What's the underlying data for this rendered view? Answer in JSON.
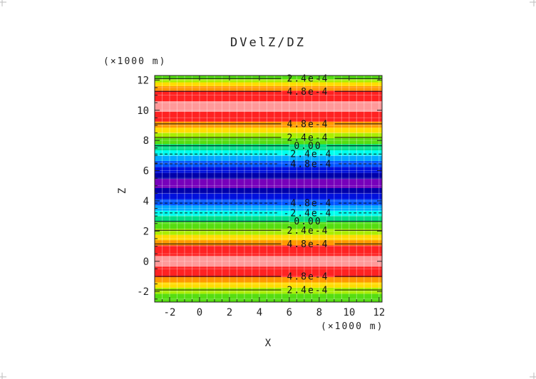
{
  "chart_data": {
    "type": "heatmap",
    "title": "DVelZ/DZ",
    "xlabel": "X",
    "ylabel": "Z",
    "x_unit": "(×1000 m)",
    "y_unit": "(×1000 m)",
    "xlim": [
      -3,
      12.2
    ],
    "ylim": [
      -2.7,
      12.3
    ],
    "x_ticks": [
      -2,
      0,
      2,
      4,
      6,
      8,
      10,
      12
    ],
    "x_tick_labels": [
      "-2",
      "0",
      "2",
      "4",
      "6",
      "8",
      "10",
      "12"
    ],
    "y_ticks": [
      -2,
      0,
      2,
      4,
      6,
      8,
      10,
      12
    ],
    "y_tick_labels": [
      "-2",
      "0",
      "2",
      "4",
      "6",
      "8",
      "10",
      "12"
    ],
    "grid": true,
    "bands": [
      {
        "from": -2.7,
        "to": -2.15,
        "color": "#55dd11"
      },
      {
        "from": -2.15,
        "to": -1.75,
        "color": "#aaee00"
      },
      {
        "from": -1.75,
        "to": -1.4,
        "color": "#ffdd00"
      },
      {
        "from": -1.4,
        "to": -1.05,
        "color": "#ff9900"
      },
      {
        "from": -1.05,
        "to": -0.35,
        "color": "#ff2222"
      },
      {
        "from": -0.35,
        "to": 0.35,
        "color": "#ff9999"
      },
      {
        "from": 0.35,
        "to": 1.05,
        "color": "#ff2222"
      },
      {
        "from": 1.05,
        "to": 1.4,
        "color": "#ff9900"
      },
      {
        "from": 1.4,
        "to": 1.75,
        "color": "#ffdd00"
      },
      {
        "from": 1.75,
        "to": 2.15,
        "color": "#aaee00"
      },
      {
        "from": 2.15,
        "to": 2.6,
        "color": "#55dd11"
      },
      {
        "from": 2.6,
        "to": 3.0,
        "color": "#00dd88"
      },
      {
        "from": 3.0,
        "to": 3.35,
        "color": "#00ffee"
      },
      {
        "from": 3.35,
        "to": 3.7,
        "color": "#00aaff"
      },
      {
        "from": 3.7,
        "to": 4.1,
        "color": "#0055ff"
      },
      {
        "from": 4.1,
        "to": 4.5,
        "color": "#0011dd"
      },
      {
        "from": 4.5,
        "to": 4.85,
        "color": "#0000aa"
      },
      {
        "from": 4.85,
        "to": 5.45,
        "color": "#7700bb"
      },
      {
        "from": 5.45,
        "to": 5.85,
        "color": "#0000aa"
      },
      {
        "from": 5.85,
        "to": 6.25,
        "color": "#0011dd"
      },
      {
        "from": 6.25,
        "to": 6.65,
        "color": "#0055ff"
      },
      {
        "from": 6.65,
        "to": 7.0,
        "color": "#00aaff"
      },
      {
        "from": 7.0,
        "to": 7.35,
        "color": "#00ffee"
      },
      {
        "from": 7.35,
        "to": 7.75,
        "color": "#00dd88"
      },
      {
        "from": 7.75,
        "to": 8.15,
        "color": "#55dd11"
      },
      {
        "from": 8.15,
        "to": 8.5,
        "color": "#aaee00"
      },
      {
        "from": 8.5,
        "to": 8.85,
        "color": "#ffdd00"
      },
      {
        "from": 8.85,
        "to": 9.25,
        "color": "#ff9900"
      },
      {
        "from": 9.25,
        "to": 9.9,
        "color": "#ff2222"
      },
      {
        "from": 9.9,
        "to": 10.6,
        "color": "#ff9999"
      },
      {
        "from": 10.6,
        "to": 11.3,
        "color": "#ff2222"
      },
      {
        "from": 11.3,
        "to": 11.6,
        "color": "#ff9900"
      },
      {
        "from": 11.6,
        "to": 11.85,
        "color": "#ffdd00"
      },
      {
        "from": 11.85,
        "to": 12.05,
        "color": "#aaee00"
      },
      {
        "from": 12.05,
        "to": 12.3,
        "color": "#55dd11"
      }
    ],
    "contours": [
      {
        "z": -1.9,
        "label": "2.4e-4",
        "dashed": false
      },
      {
        "z": -1.0,
        "label": "4.8e-4",
        "dashed": false
      },
      {
        "z": 1.15,
        "label": "4.8e-4",
        "dashed": false
      },
      {
        "z": 2.05,
        "label": "2.4e-4",
        "dashed": false
      },
      {
        "z": 2.65,
        "label": "0.00",
        "dashed": false
      },
      {
        "z": 3.2,
        "label": "-2.4e-4",
        "dashed": true
      },
      {
        "z": 3.85,
        "label": "-4.8e-4",
        "dashed": true
      },
      {
        "z": 6.45,
        "label": "-4.8e-4",
        "dashed": true
      },
      {
        "z": 7.1,
        "label": "-2.4e-4",
        "dashed": true
      },
      {
        "z": 7.65,
        "label": "0.00",
        "dashed": false
      },
      {
        "z": 8.2,
        "label": "2.4e-4",
        "dashed": false
      },
      {
        "z": 9.1,
        "label": "4.8e-4",
        "dashed": false
      },
      {
        "z": 11.25,
        "label": "4.8e-4",
        "dashed": false
      },
      {
        "z": 12.1,
        "label": "2.4e-4",
        "dashed": false
      }
    ]
  }
}
